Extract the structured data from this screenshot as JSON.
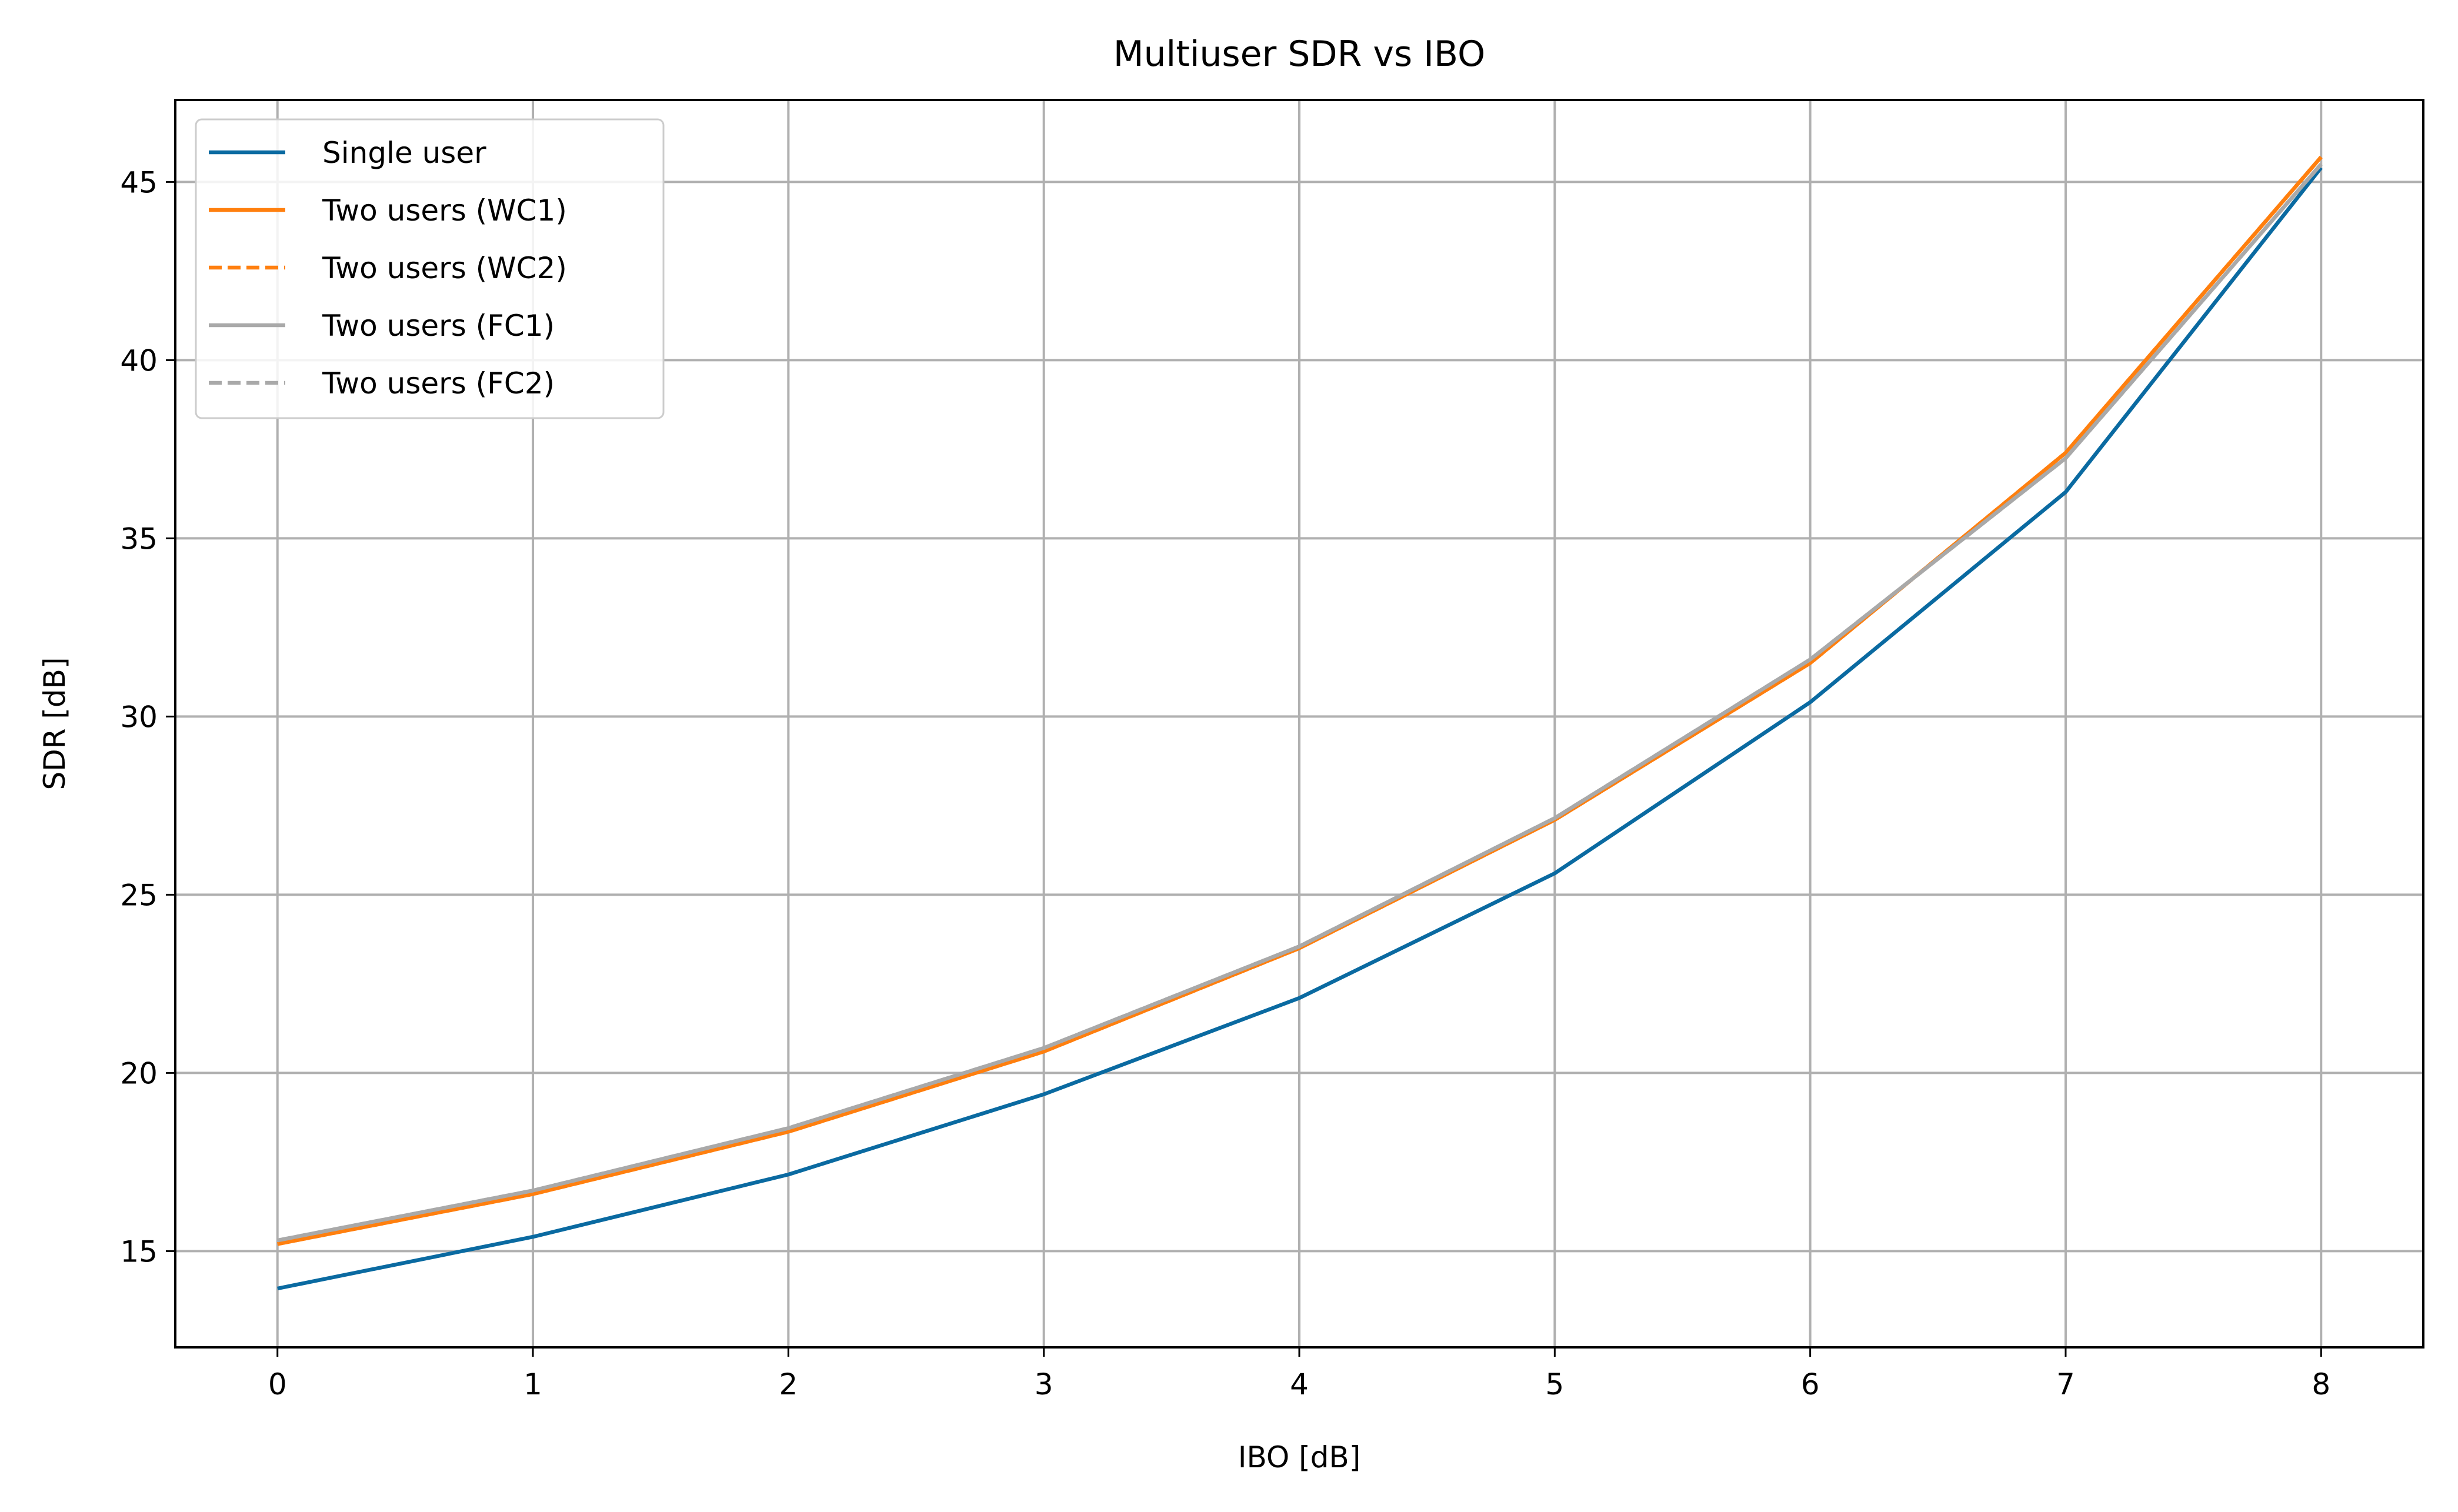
{
  "chart_data": {
    "type": "line",
    "title": "Multiuser SDR vs IBO",
    "xlabel": "IBO [dB]",
    "ylabel": "SDR [dB]",
    "xlim": [
      -0.4,
      8.4
    ],
    "ylim": [
      12.3,
      47.3
    ],
    "xticks": [
      0,
      1,
      2,
      3,
      4,
      5,
      6,
      7,
      8
    ],
    "yticks": [
      15,
      20,
      25,
      30,
      35,
      40,
      45
    ],
    "grid": true,
    "legend_position": "top-left",
    "x": [
      0,
      1,
      2,
      3,
      4,
      5,
      6,
      7,
      8
    ],
    "series": [
      {
        "name": "Single user",
        "color": "#0a6aa1",
        "dash": "solid",
        "values": [
          13.95,
          15.4,
          17.15,
          19.4,
          22.1,
          25.6,
          30.4,
          36.3,
          45.4
        ]
      },
      {
        "name": "Two users (WC1)",
        "color": "#ff7f0e",
        "dash": "solid",
        "values": [
          15.2,
          16.6,
          18.35,
          20.6,
          23.5,
          27.1,
          31.5,
          37.4,
          45.7
        ]
      },
      {
        "name": "Two users (WC2)",
        "color": "#ff7f0e",
        "dash": "dashed",
        "values": [
          15.2,
          16.6,
          18.35,
          20.6,
          23.5,
          27.1,
          31.5,
          37.4,
          45.7
        ]
      },
      {
        "name": "Two users (FC1)",
        "color": "#a9a9a9",
        "dash": "solid",
        "values": [
          15.3,
          16.7,
          18.45,
          20.7,
          23.55,
          27.15,
          31.6,
          37.25,
          45.5
        ]
      },
      {
        "name": "Two users (FC2)",
        "color": "#a9a9a9",
        "dash": "dashed",
        "values": [
          15.3,
          16.7,
          18.45,
          20.7,
          23.55,
          27.15,
          31.6,
          37.25,
          45.5
        ]
      }
    ]
  }
}
